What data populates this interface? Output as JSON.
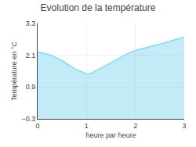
{
  "chart_data": {
    "type": "area",
    "title": "Evolution de la température",
    "xlabel": "heure par heure",
    "ylabel": "Température en °C",
    "x": [
      0,
      0.25,
      0.5,
      0.75,
      1.0,
      1.1,
      1.3,
      1.6,
      1.9,
      2.0,
      2.3,
      2.6,
      2.9,
      3.0
    ],
    "values": [
      2.22,
      2.12,
      1.9,
      1.6,
      1.4,
      1.42,
      1.62,
      1.92,
      2.22,
      2.28,
      2.42,
      2.57,
      2.73,
      2.8
    ],
    "color": "#88d8f0",
    "xlim": [
      0,
      3
    ],
    "ylim": [
      -0.3,
      3.3
    ],
    "xticks": [
      0,
      1,
      2,
      3
    ],
    "yticks": [
      -0.3,
      0.9,
      2.1,
      3.3
    ],
    "grid": true
  }
}
